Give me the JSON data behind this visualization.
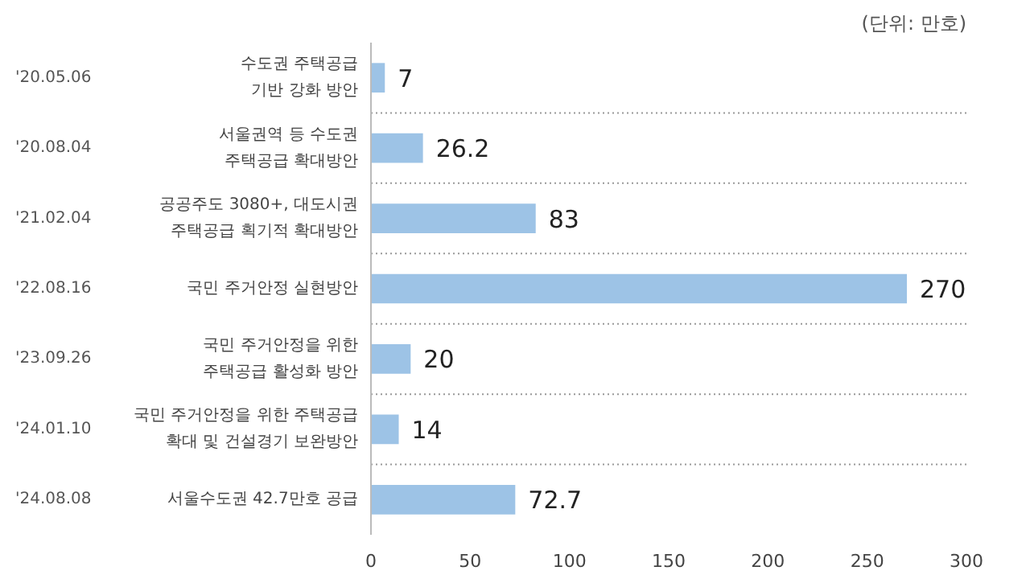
{
  "chart_data": {
    "type": "bar",
    "orientation": "horizontal",
    "subtitle": "(단위: 만호)",
    "categories": [
      "'20.05.06 수도권 주택공급\n기반 강화 방안",
      "'20.08.04 서울권역 등 수도권\n주택공급 확대방안",
      "'21.02.04 공공주도 3080+, 대도시권\n주택공급 획기적 확대방안",
      "'22.08.16 국민 주거안정 실현방안",
      "'23.09.26 국민 주거안정을 위한\n주택공급 활성화 방안",
      "'24.01.10 국민 주거안정을 위한 주택공급\n확대 및 건설경기 보완방안",
      "'24.08.08 서울수도권 42.7만호 공급"
    ],
    "values": [
      7,
      26.2,
      83,
      270,
      20,
      14,
      72.7
    ],
    "color": "#9dc3e6",
    "xlim": [
      0,
      300
    ],
    "xticks": [
      0,
      50,
      100,
      150,
      200,
      250,
      300
    ],
    "data_labels": true,
    "grid": "y"
  }
}
